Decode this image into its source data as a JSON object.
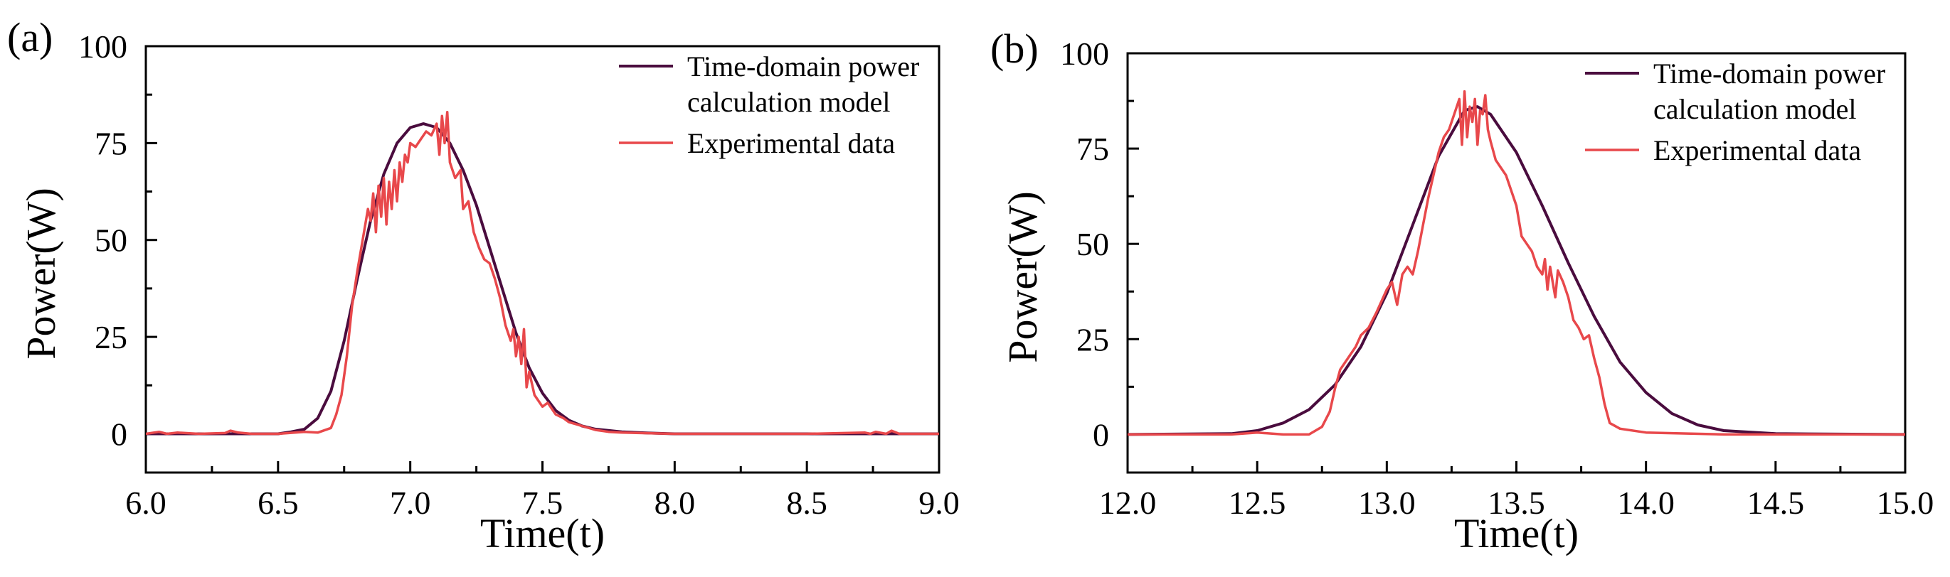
{
  "figure_caption": "",
  "colors": {
    "model": "#4a0c3e",
    "experimental": "#e8484b",
    "axis": "#000000",
    "background": "#ffffff"
  },
  "chart_data": [
    {
      "panel": "(a)",
      "type": "line",
      "title": "",
      "xlabel": "Time(t)",
      "ylabel": "Power(W)",
      "xlim": [
        6.0,
        9.0
      ],
      "ylim": [
        -10,
        100
      ],
      "xticks": [
        6.0,
        6.5,
        7.0,
        7.5,
        8.0,
        8.5,
        9.0
      ],
      "xtick_labels": [
        "6.0",
        "6.5",
        "7.0",
        "7.5",
        "8.0",
        "8.5",
        "9.0"
      ],
      "yticks": [
        0,
        25,
        50,
        75,
        100
      ],
      "ytick_labels": [
        "0",
        "25",
        "50",
        "75",
        "100"
      ],
      "grid": false,
      "legend_position": "top-right",
      "series": [
        {
          "name": "Time-domain power calculation model",
          "legend_lines": [
            "Time-domain power",
            "calculation model"
          ],
          "color": "#4a0c3e",
          "x": [
            6.0,
            6.5,
            6.55,
            6.6,
            6.65,
            6.7,
            6.75,
            6.8,
            6.85,
            6.9,
            6.95,
            7.0,
            7.05,
            7.1,
            7.15,
            7.2,
            7.25,
            7.3,
            7.35,
            7.4,
            7.45,
            7.5,
            7.55,
            7.6,
            7.65,
            7.7,
            7.8,
            7.9,
            8.0,
            9.0
          ],
          "values": [
            0,
            0,
            0.5,
            1.2,
            4,
            11,
            24,
            40,
            55,
            67,
            75,
            79,
            80,
            79,
            75,
            68,
            59,
            48,
            37,
            26,
            17,
            10.5,
            6,
            3.5,
            2,
            1.2,
            0.5,
            0.2,
            0,
            0
          ]
        },
        {
          "name": "Experimental data",
          "legend_lines": [
            "Experimental data"
          ],
          "color": "#e8484b",
          "x": [
            6.0,
            6.05,
            6.08,
            6.12,
            6.2,
            6.3,
            6.32,
            6.35,
            6.4,
            6.5,
            6.6,
            6.65,
            6.7,
            6.72,
            6.74,
            6.76,
            6.78,
            6.8,
            6.82,
            6.84,
            6.85,
            6.86,
            6.87,
            6.88,
            6.89,
            6.9,
            6.91,
            6.92,
            6.93,
            6.94,
            6.95,
            6.96,
            6.97,
            6.98,
            6.99,
            7.0,
            7.02,
            7.04,
            7.06,
            7.08,
            7.1,
            7.11,
            7.12,
            7.13,
            7.14,
            7.15,
            7.17,
            7.19,
            7.2,
            7.22,
            7.24,
            7.26,
            7.28,
            7.3,
            7.32,
            7.34,
            7.36,
            7.38,
            7.39,
            7.4,
            7.41,
            7.42,
            7.43,
            7.44,
            7.45,
            7.47,
            7.5,
            7.52,
            7.55,
            7.58,
            7.6,
            7.65,
            7.7,
            7.75,
            7.8,
            8.0,
            8.5,
            8.72,
            8.74,
            8.76,
            8.8,
            8.82,
            8.85,
            9.0
          ],
          "values": [
            0,
            0.5,
            0,
            0.3,
            0,
            0.2,
            0.8,
            0.3,
            0,
            0,
            0.5,
            0.3,
            1.5,
            5,
            10,
            20,
            33,
            42,
            50,
            58,
            55,
            62,
            52,
            64,
            56,
            66,
            54,
            65,
            58,
            68,
            60,
            70,
            65,
            72,
            70,
            75,
            74,
            76,
            78,
            77,
            80,
            72,
            82,
            75,
            83,
            70,
            66,
            68,
            58,
            60,
            52,
            48,
            45,
            44,
            40,
            35,
            28,
            24,
            27,
            20,
            25,
            18,
            27,
            12,
            16,
            10,
            7,
            8,
            5,
            4,
            3,
            2,
            1,
            0.5,
            0.3,
            0,
            0,
            0.3,
            0,
            0.5,
            0,
            0.8,
            0,
            0
          ]
        }
      ]
    },
    {
      "panel": "(b)",
      "type": "line",
      "title": "",
      "xlabel": "Time(t)",
      "ylabel": "Power(W)",
      "xlim": [
        12.0,
        15.0
      ],
      "ylim": [
        -10,
        100
      ],
      "xticks": [
        12.0,
        12.5,
        13.0,
        13.5,
        14.0,
        14.5,
        15.0
      ],
      "xtick_labels": [
        "12.0",
        "12.5",
        "13.0",
        "13.5",
        "14.0",
        "14.5",
        "15.0"
      ],
      "yticks": [
        0,
        25,
        50,
        75,
        100
      ],
      "ytick_labels": [
        "0",
        "25",
        "50",
        "75",
        "100"
      ],
      "grid": false,
      "legend_position": "top-right",
      "series": [
        {
          "name": "Time-domain power calculation model",
          "legend_lines": [
            "Time-domain power",
            "calculation model"
          ],
          "color": "#4a0c3e",
          "x": [
            12.0,
            12.4,
            12.5,
            12.6,
            12.7,
            12.8,
            12.9,
            13.0,
            13.1,
            13.2,
            13.3,
            13.35,
            13.4,
            13.5,
            13.6,
            13.7,
            13.8,
            13.9,
            14.0,
            14.1,
            14.2,
            14.3,
            14.5,
            15.0
          ],
          "values": [
            0,
            0.2,
            1,
            3,
            6.5,
            13,
            23,
            37,
            55,
            73,
            85,
            86,
            84,
            74,
            60,
            45,
            31,
            19,
            11,
            5.5,
            2.5,
            1,
            0.2,
            0
          ]
        },
        {
          "name": "Experimental data",
          "legend_lines": [
            "Experimental data"
          ],
          "color": "#e8484b",
          "x": [
            12.0,
            12.4,
            12.5,
            12.6,
            12.7,
            12.75,
            12.78,
            12.8,
            12.82,
            12.85,
            12.88,
            12.9,
            12.93,
            12.96,
            13.0,
            13.02,
            13.04,
            13.06,
            13.08,
            13.1,
            13.12,
            13.14,
            13.16,
            13.18,
            13.2,
            13.22,
            13.24,
            13.26,
            13.28,
            13.29,
            13.3,
            13.31,
            13.32,
            13.33,
            13.34,
            13.35,
            13.36,
            13.37,
            13.38,
            13.39,
            13.4,
            13.42,
            13.44,
            13.46,
            13.48,
            13.5,
            13.52,
            13.54,
            13.56,
            13.58,
            13.6,
            13.61,
            13.62,
            13.63,
            13.64,
            13.65,
            13.66,
            13.68,
            13.7,
            13.72,
            13.74,
            13.76,
            13.78,
            13.8,
            13.82,
            13.84,
            13.86,
            13.9,
            14.0,
            14.3,
            14.5,
            15.0
          ],
          "values": [
            0,
            0,
            0.5,
            0,
            0,
            2,
            6,
            12,
            17,
            20,
            23,
            26,
            28,
            32,
            38,
            40,
            34,
            42,
            44,
            42,
            48,
            55,
            62,
            68,
            74,
            78,
            80,
            84,
            88,
            76,
            90,
            78,
            86,
            82,
            88,
            76,
            85,
            84,
            89,
            80,
            77,
            72,
            70,
            68,
            64,
            60,
            52,
            50,
            48,
            44,
            42,
            46,
            38,
            44,
            40,
            36,
            43,
            40,
            36,
            30,
            28,
            25,
            26,
            20,
            15,
            8,
            3,
            1.5,
            0.5,
            0,
            0,
            0
          ]
        }
      ]
    }
  ]
}
